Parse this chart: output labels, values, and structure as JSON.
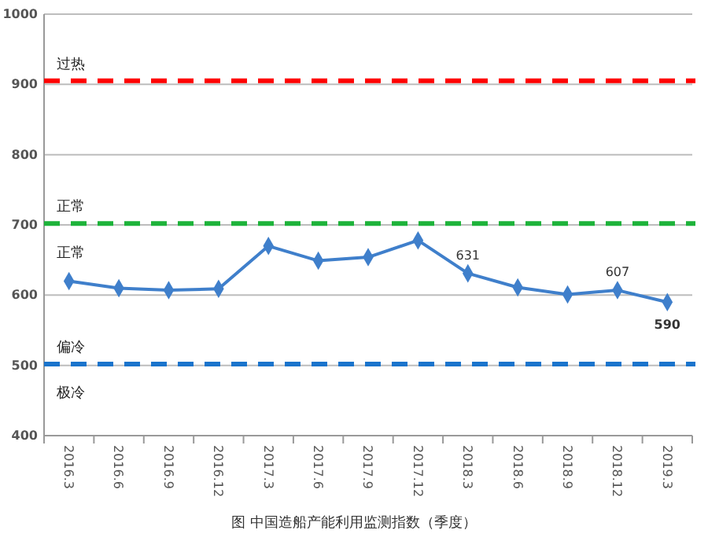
{
  "chart_data": {
    "type": "line",
    "title": "图   中国造船产能利用监测指数（季度）",
    "categories": [
      "2016.3",
      "2016.6",
      "2016.9",
      "2016.12",
      "2017.3",
      "2017.6",
      "2017.9",
      "2017.12",
      "2018.3",
      "2018.6",
      "2018.9",
      "2018.12",
      "2019.3"
    ],
    "series": [
      {
        "color": "#3f7fcb",
        "values": [
          620,
          610,
          607,
          609,
          670,
          649,
          654,
          678,
          631,
          611,
          601,
          607,
          590
        ],
        "value_labels": [
          null,
          null,
          null,
          null,
          null,
          null,
          null,
          null,
          "631",
          null,
          null,
          "607",
          "590"
        ]
      }
    ],
    "ylim": [
      400,
      1000
    ],
    "yticks": [
      400,
      500,
      600,
      700,
      800,
      900,
      1000
    ],
    "grid": "y",
    "marker": "diamond",
    "line_style": "solid",
    "ref_lines": [
      {
        "axis": "y",
        "value": 905,
        "color": "#ff0000",
        "line_style": "dashed",
        "label": "过热"
      },
      {
        "axis": "y",
        "value": 702,
        "color": "#1db33a",
        "line_style": "dashed",
        "label": "正常"
      },
      {
        "axis": "y",
        "value": 502,
        "color": "#1a74cc",
        "line_style": "dashed",
        "label": "偏冷"
      }
    ],
    "annotations": [
      "正常",
      "极冷"
    ]
  }
}
